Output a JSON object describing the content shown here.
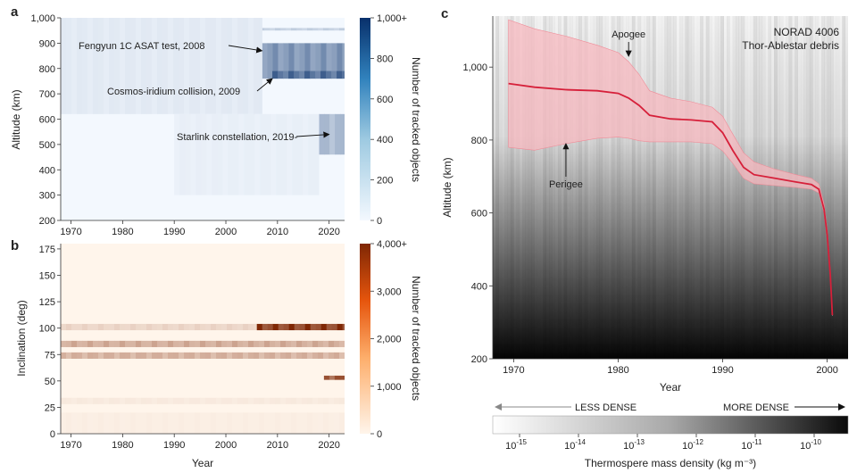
{
  "chart_data": [
    {
      "panel": "a",
      "type": "heatmap",
      "title": "",
      "xlabel": "",
      "ylabel": "Altitude (km)",
      "xlim": [
        1968,
        2023
      ],
      "ylim": [
        200,
        1000
      ],
      "x_ticks": [
        "1970",
        "1980",
        "1990",
        "2000",
        "2010",
        "2020"
      ],
      "y_ticks": [
        "200",
        "300",
        "400",
        "500",
        "600",
        "700",
        "800",
        "900",
        "1,000"
      ],
      "colorbar": {
        "label": "Number of tracked objects",
        "ticks": [
          "0",
          "200",
          "400",
          "600",
          "800",
          "1,000+"
        ],
        "range": [
          0,
          1000
        ],
        "color_low": "#f3f8fe",
        "color_high": "#08306b"
      },
      "annotations": [
        {
          "text": "Fengyun 1C ASAT test, 2008",
          "x": 2007,
          "y": 870
        },
        {
          "text": "Cosmos-iridium collision, 2009",
          "x": 2009,
          "y": 760
        },
        {
          "text": "Starlink constellation, 2019-",
          "x": 2020,
          "y": 540
        }
      ],
      "bands": [
        {
          "y": [
            950,
            960
          ],
          "x": [
            1968,
            2023
          ],
          "value": 220
        },
        {
          "y": [
            760,
            900
          ],
          "x": [
            2007,
            2023
          ],
          "value": 550
        },
        {
          "y": [
            760,
            790
          ],
          "x": [
            2009,
            2023
          ],
          "value": 780
        },
        {
          "y": [
            520,
            560
          ],
          "x": [
            2019,
            2023
          ],
          "value": 1000
        },
        {
          "y": [
            460,
            620
          ],
          "x": [
            2018,
            2023
          ],
          "value": 350
        },
        {
          "y": [
            620,
            1000
          ],
          "x": [
            1968,
            2007
          ],
          "value": 80
        },
        {
          "y": [
            300,
            620
          ],
          "x": [
            1990,
            2018
          ],
          "value": 50
        }
      ]
    },
    {
      "panel": "b",
      "type": "heatmap",
      "title": "",
      "xlabel": "Year",
      "ylabel": "Inclination (deg)",
      "xlim": [
        1968,
        2023
      ],
      "ylim": [
        0,
        180
      ],
      "x_ticks": [
        "1970",
        "1980",
        "1990",
        "2000",
        "2010",
        "2020"
      ],
      "y_ticks": [
        "0",
        "25",
        "50",
        "75",
        "100",
        "125",
        "150",
        "175"
      ],
      "colorbar": {
        "label": "Number of tracked objects",
        "ticks": [
          "0",
          "1,000",
          "2,000",
          "3,000",
          "4,000+"
        ],
        "range": [
          0,
          4000
        ],
        "color_low": "#fff5eb",
        "color_high": "#7f2704"
      },
      "bands": [
        {
          "y": [
            98,
            104
          ],
          "x": [
            1968,
            2006
          ],
          "value": 700
        },
        {
          "y": [
            98,
            104
          ],
          "x": [
            2006,
            2023
          ],
          "value": 4000
        },
        {
          "y": [
            82,
            88
          ],
          "x": [
            1968,
            2023
          ],
          "value": 1600
        },
        {
          "y": [
            71,
            77
          ],
          "x": [
            1968,
            2023
          ],
          "value": 1500
        },
        {
          "y": [
            51,
            55
          ],
          "x": [
            2019,
            2023
          ],
          "value": 3500
        },
        {
          "y": [
            28,
            34
          ],
          "x": [
            1968,
            2023
          ],
          "value": 250
        },
        {
          "y": [
            0,
            20
          ],
          "x": [
            1968,
            2023
          ],
          "value": 150
        }
      ]
    },
    {
      "panel": "c",
      "type": "line",
      "title": "NORAD 4006",
      "subtitle": "Thor-Ablestar debris",
      "xlabel": "Year",
      "ylabel": "Altitude (km)",
      "xlim": [
        1968,
        2002
      ],
      "ylim": [
        200,
        1140
      ],
      "x_ticks": [
        "1970",
        "1980",
        "1990",
        "2000"
      ],
      "y_ticks": [
        "200",
        "400",
        "600",
        "800",
        "1,000"
      ],
      "series": [
        {
          "x": [
            1969.5,
            1972,
            1975,
            1978,
            1980,
            1981,
            1982,
            1983,
            1985,
            1987,
            1989,
            1990,
            1991,
            1992,
            1993,
            1995,
            1997,
            1998.5,
            1999.2,
            1999.7,
            2000,
            2000.3,
            2000.5
          ],
          "values": [
            955,
            945,
            938,
            935,
            928,
            915,
            895,
            868,
            858,
            855,
            850,
            820,
            770,
            725,
            705,
            695,
            685,
            678,
            665,
            610,
            540,
            430,
            320
          ]
        }
      ],
      "band_upper": [
        1130,
        1105,
        1085,
        1060,
        1040,
        1015,
        980,
        935,
        915,
        905,
        890,
        865,
        815,
        765,
        740,
        720,
        705,
        695,
        680,
        625,
        555,
        440,
        325
      ],
      "band_lower": [
        780,
        772,
        790,
        805,
        808,
        805,
        798,
        795,
        795,
        795,
        790,
        770,
        735,
        695,
        680,
        675,
        670,
        665,
        655,
        600,
        530,
        425,
        318
      ],
      "annotations": [
        {
          "text": "Apogee",
          "x": 1981,
          "y": 1030
        },
        {
          "text": "Perigee",
          "x": 1975,
          "y": 790
        }
      ],
      "density_bar": {
        "label_less": "LESS DENSE",
        "label_more": "MORE DENSE",
        "ticks": [
          "-15",
          "-14",
          "-13",
          "-12",
          "-11",
          "-10"
        ],
        "tick_base": "10",
        "label": "Thermospere mass density (kg m⁻³)"
      },
      "line_color": "#d6203a",
      "band_color": "#f7b8bf"
    }
  ]
}
